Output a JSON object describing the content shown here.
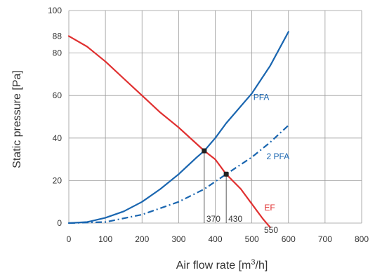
{
  "chart_data": {
    "type": "line",
    "xlabel": "Air flow rate  [m",
    "xlabel_sup": "3",
    "xlabel_end": "/h]",
    "ylabel": "Static pressure [Pa]",
    "xlim": [
      0,
      800
    ],
    "ylim": [
      0,
      100
    ],
    "x_ticks": [
      "0",
      "100",
      "200",
      "300",
      "400",
      "500",
      "600",
      "700",
      "800"
    ],
    "y_ticks": [
      "0",
      "20",
      "40",
      "60",
      "80",
      "88",
      "100"
    ],
    "grid": true,
    "series": [
      {
        "name": "PFA",
        "color": "#1a66b0",
        "style": "solid",
        "points": [
          [
            0,
            0
          ],
          [
            50,
            0.5
          ],
          [
            100,
            2.5
          ],
          [
            150,
            5.5
          ],
          [
            200,
            10
          ],
          [
            250,
            16
          ],
          [
            300,
            23
          ],
          [
            350,
            31
          ],
          [
            370,
            34
          ],
          [
            400,
            40
          ],
          [
            430,
            47
          ],
          [
            500,
            61
          ],
          [
            550,
            74
          ],
          [
            600,
            90
          ]
        ]
      },
      {
        "name": "2 PFA",
        "color": "#1a66b0",
        "style": "dashdot",
        "points": [
          [
            0,
            0
          ],
          [
            100,
            0.5
          ],
          [
            200,
            4
          ],
          [
            300,
            10
          ],
          [
            370,
            16
          ],
          [
            430,
            23
          ],
          [
            500,
            31
          ],
          [
            550,
            38
          ],
          [
            600,
            46
          ]
        ]
      },
      {
        "name": "EF",
        "color": "#e03030",
        "style": "solid",
        "points": [
          [
            0,
            88
          ],
          [
            50,
            83
          ],
          [
            100,
            76
          ],
          [
            150,
            68
          ],
          [
            200,
            60
          ],
          [
            250,
            52
          ],
          [
            300,
            45
          ],
          [
            370,
            34
          ],
          [
            400,
            30
          ],
          [
            430,
            23
          ],
          [
            470,
            16
          ],
          [
            500,
            9
          ],
          [
            530,
            2
          ],
          [
            550,
            -2
          ]
        ]
      }
    ],
    "operating_points": [
      {
        "x": 370,
        "y": 34,
        "label": "370"
      },
      {
        "x": 430,
        "y": 23,
        "label": "430"
      }
    ],
    "annotation_550": "550"
  }
}
